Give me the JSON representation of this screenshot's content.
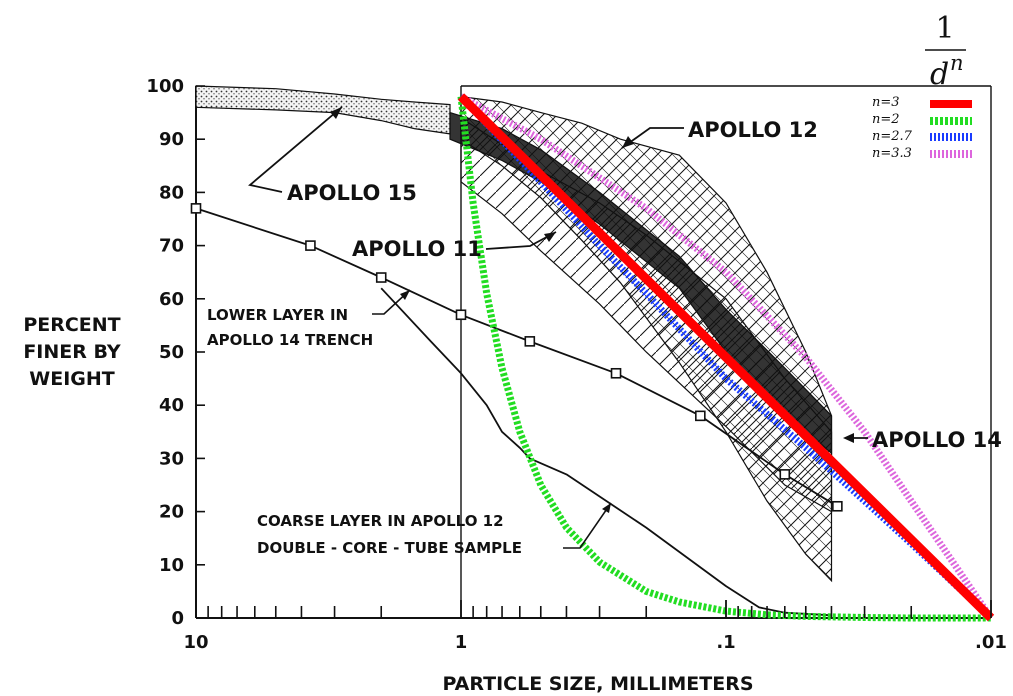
{
  "chart_data": {
    "type": "line",
    "xlabel": "PARTICLE SIZE, MILLIMETERS",
    "ylabel_lines": [
      "PERCENT",
      "FINER BY",
      "WEIGHT"
    ],
    "x_scale": "log",
    "x_reversed": true,
    "xlim": [
      10,
      0.01
    ],
    "ylim": [
      0,
      100
    ],
    "x_tick_labels": [
      {
        "value": 10,
        "label": "10"
      },
      {
        "value": 1,
        "label": "1"
      },
      {
        "value": 0.1,
        "label": ".1"
      },
      {
        "value": 0.01,
        "label": ".01"
      }
    ],
    "y_ticks": [
      0,
      10,
      20,
      30,
      40,
      50,
      60,
      70,
      80,
      90,
      100
    ],
    "formula": {
      "numerator": "1",
      "denominator": "d",
      "exponent": "n"
    },
    "legend_position": "top-right",
    "series": [
      {
        "name": "n=3",
        "color": "#ff0000",
        "style": "solid",
        "x": [
          1,
          0.01
        ],
        "y": [
          98,
          0
        ]
      },
      {
        "name": "n=2",
        "color": "#22dd22",
        "style": "dashed",
        "x": [
          1,
          0.9,
          0.8,
          0.7,
          0.6,
          0.5,
          0.4,
          0.3,
          0.2,
          0.15,
          0.1,
          0.07,
          0.05,
          0.03,
          0.02,
          0.01
        ],
        "y": [
          98,
          78,
          61,
          47,
          35,
          25,
          17,
          10.5,
          5,
          3,
          1.3,
          0.6,
          0.3,
          0.1,
          0,
          0
        ]
      },
      {
        "name": "n=2.7",
        "color": "#1a3cff",
        "style": "dashed",
        "x": [
          1,
          0.5,
          0.3,
          0.2,
          0.1,
          0.05,
          0.03,
          0.02,
          0.01
        ],
        "y": [
          98,
          82,
          70,
          61,
          45,
          32,
          22,
          14,
          0
        ]
      },
      {
        "name": "n=3.3",
        "color": "#dd66dd",
        "style": "dashed",
        "x": [
          1,
          0.5,
          0.2,
          0.1,
          0.05,
          0.03,
          0.02,
          0.01
        ],
        "y": [
          98,
          90,
          77,
          65,
          49,
          35,
          22,
          0
        ]
      },
      {
        "name": "LOWER LAYER IN APOLLO 14 TRENCH",
        "color": "#111111",
        "style": "marker-line",
        "x": [
          10,
          3.7,
          2,
          1,
          0.55,
          0.26,
          0.125,
          0.06,
          0.038
        ],
        "y": [
          77,
          70,
          64,
          57,
          52,
          46,
          38,
          27,
          21
        ]
      },
      {
        "name": "COARSE LAYER IN APOLLO 12 DOUBLE-CORE-TUBE SAMPLE",
        "color": "#111111",
        "style": "solid",
        "x": [
          2,
          1.3,
          1,
          0.8,
          0.7,
          0.6,
          0.55,
          0.4,
          0.2,
          0.1,
          0.075,
          0.06,
          0.04
        ],
        "y": [
          62,
          52,
          46,
          40,
          35,
          32,
          30,
          27,
          17,
          6,
          2,
          1,
          0.5
        ]
      }
    ],
    "bands": [
      {
        "name": "APOLLO 15",
        "x": [
          10,
          5,
          3,
          2,
          1.5,
          1.1
        ],
        "upper": [
          100,
          99.5,
          98.5,
          97.5,
          97,
          96.5
        ],
        "lower": [
          96,
          95.5,
          95,
          93.5,
          92,
          91
        ]
      },
      {
        "name": "APOLLO 12",
        "x": [
          1,
          0.7,
          0.5,
          0.35,
          0.25,
          0.15,
          0.1,
          0.07,
          0.05,
          0.04
        ],
        "upper": [
          98,
          97,
          95,
          93,
          90,
          87,
          78,
          65,
          50,
          38
        ],
        "lower": [
          90,
          85,
          79,
          71,
          63,
          48,
          35,
          22,
          12,
          7
        ]
      },
      {
        "name": "APOLLO 11",
        "x": [
          1,
          0.7,
          0.5,
          0.3,
          0.2,
          0.1,
          0.06,
          0.04
        ],
        "upper": [
          94,
          89,
          84,
          78,
          72,
          60,
          45,
          35
        ],
        "lower": [
          82,
          76,
          69,
          59,
          50,
          36,
          25,
          20
        ]
      },
      {
        "name": "APOLLO 14",
        "x": [
          1.1,
          0.7,
          0.5,
          0.3,
          0.15,
          0.1,
          0.06,
          0.04
        ],
        "upper": [
          95,
          92,
          88,
          80,
          68,
          58,
          47,
          38
        ],
        "lower": [
          90,
          86,
          82,
          74,
          62,
          50,
          38,
          31
        ]
      }
    ],
    "annotations": [
      {
        "text": "APOLLO 15"
      },
      {
        "text": "APOLLO 12"
      },
      {
        "text": "APOLLO 11"
      },
      {
        "text": "APOLLO 14"
      },
      {
        "text_lines": [
          "LOWER LAYER IN",
          "APOLLO 14 TRENCH"
        ]
      },
      {
        "text_lines": [
          "COARSE LAYER IN APOLLO 12",
          "DOUBLE - CORE - TUBE  SAMPLE"
        ]
      }
    ]
  }
}
